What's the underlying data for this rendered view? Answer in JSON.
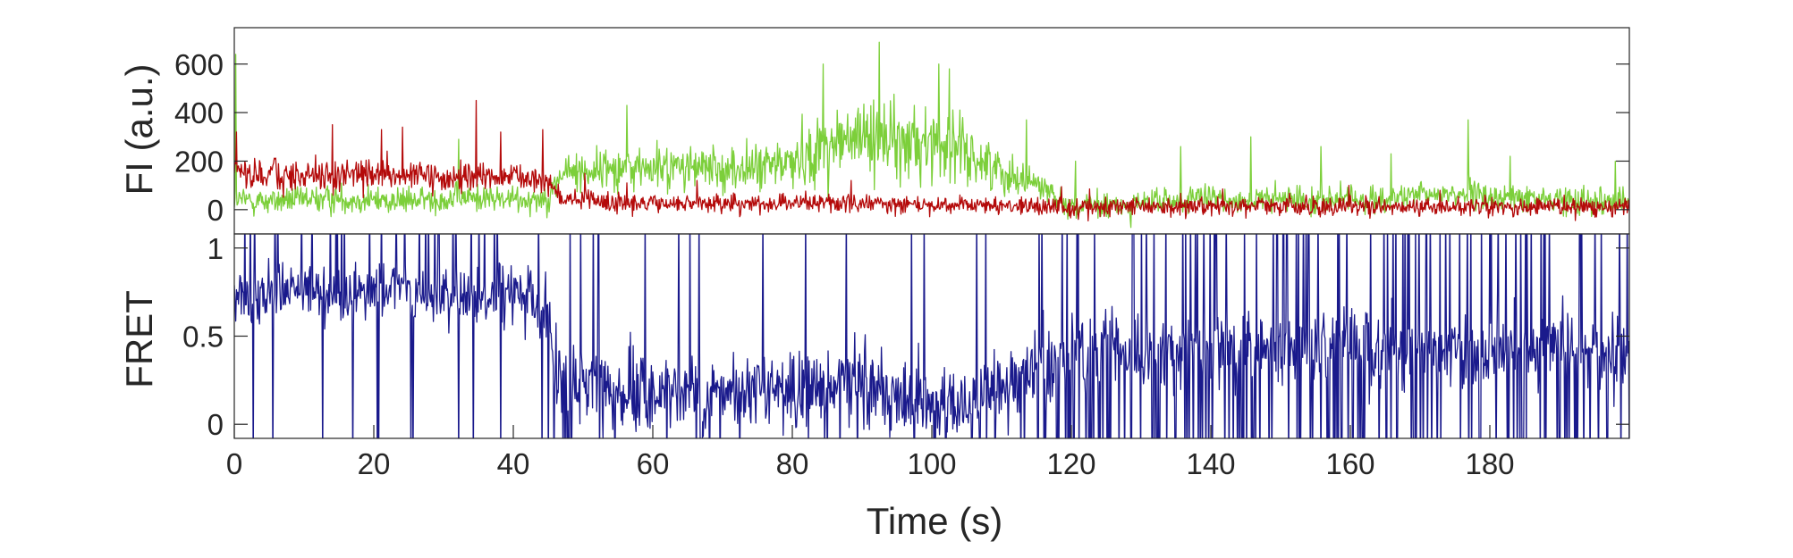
{
  "chart_data": [
    {
      "panel": "top",
      "type": "line",
      "ylabel": "FI (a.u.)",
      "xlim": [
        0,
        200
      ],
      "ylim": [
        -100,
        750
      ],
      "yticks": [
        0,
        200,
        400,
        600
      ],
      "ytick_labels": [
        "0",
        "200",
        "400",
        "600"
      ],
      "series": [
        {
          "color": "#7ccf3a",
          "x": [
            0,
            5,
            10,
            15,
            20,
            25,
            30,
            35,
            40,
            45,
            47,
            50,
            55,
            60,
            65,
            70,
            75,
            80,
            85,
            90,
            92,
            95,
            100,
            102,
            105,
            110,
            115,
            120,
            125,
            130,
            135,
            140,
            145,
            150,
            155,
            160,
            165,
            170,
            175,
            180,
            185,
            190,
            195,
            200
          ],
          "values": [
            40,
            35,
            40,
            45,
            40,
            35,
            45,
            50,
            40,
            50,
            150,
            160,
            175,
            170,
            175,
            165,
            170,
            200,
            260,
            290,
            320,
            260,
            280,
            270,
            230,
            160,
            110,
            15,
            10,
            25,
            35,
            45,
            40,
            40,
            45,
            40,
            45,
            55,
            70,
            50,
            45,
            40,
            45,
            30
          ],
          "peaks_x": [
            0.2,
            32,
            56,
            84,
            86,
            92,
            97,
            100.5,
            102,
            113,
            120,
            135,
            145,
            155,
            165,
            176,
            182,
            197
          ],
          "peaks_y": [
            640,
            290,
            430,
            600,
            410,
            690,
            430,
            600,
            580,
            370,
            200,
            260,
            300,
            260,
            230,
            370,
            220,
            200
          ]
        },
        {
          "color": "#b40a0a",
          "x": [
            0,
            5,
            10,
            15,
            20,
            25,
            30,
            35,
            40,
            45,
            47,
            50,
            55,
            60,
            65,
            70,
            75,
            80,
            85,
            90,
            95,
            100,
            105,
            110,
            115,
            120,
            125,
            130,
            135,
            140,
            145,
            150,
            155,
            160,
            165,
            170,
            175,
            180,
            185,
            190,
            195,
            200
          ],
          "values": [
            150,
            145,
            140,
            135,
            140,
            140,
            130,
            135,
            130,
            120,
            40,
            35,
            30,
            25,
            25,
            25,
            25,
            25,
            30,
            25,
            25,
            20,
            15,
            15,
            15,
            5,
            10,
            15,
            10,
            15,
            15,
            15,
            10,
            15,
            10,
            10,
            20,
            15,
            10,
            10,
            10,
            10
          ],
          "peaks_x": [
            0.3,
            14,
            21,
            24,
            34.5,
            38,
            44,
            50,
            56,
            66,
            88,
            118,
            122,
            141,
            159,
            172,
            199.5
          ],
          "peaks_y": [
            320,
            350,
            330,
            340,
            450,
            320,
            330,
            150,
            110,
            120,
            120,
            95,
            85,
            85,
            100,
            80,
            150
          ]
        }
      ]
    },
    {
      "panel": "bottom",
      "type": "line",
      "xlabel": "Time (s)",
      "ylabel": "FRET",
      "xlim": [
        0,
        200
      ],
      "ylim": [
        -0.08,
        1.08
      ],
      "xticks": [
        0,
        20,
        40,
        60,
        80,
        100,
        120,
        140,
        160,
        180
      ],
      "xtick_labels": [
        "0",
        "20",
        "40",
        "60",
        "80",
        "100",
        "120",
        "140",
        "160",
        "180"
      ],
      "yticks": [
        0,
        0.5,
        1
      ],
      "ytick_labels": [
        "0",
        "0.5",
        "1"
      ],
      "series": [
        {
          "color": "#1a1a8c",
          "x": [
            0,
            5,
            10,
            15,
            20,
            25,
            30,
            35,
            40,
            45,
            47,
            50,
            55,
            60,
            65,
            70,
            75,
            80,
            85,
            90,
            95,
            100,
            105,
            110,
            115,
            120,
            125,
            130,
            135,
            140,
            145,
            150,
            155,
            160,
            165,
            170,
            175,
            180,
            185,
            190,
            195,
            200
          ],
          "values": [
            0.72,
            0.74,
            0.76,
            0.72,
            0.76,
            0.75,
            0.72,
            0.7,
            0.74,
            0.66,
            0.22,
            0.2,
            0.19,
            0.17,
            0.18,
            0.2,
            0.17,
            0.18,
            0.22,
            0.26,
            0.17,
            0.12,
            0.12,
            0.2,
            0.3,
            0.4,
            0.42,
            0.42,
            0.4,
            0.44,
            0.42,
            0.42,
            0.43,
            0.44,
            0.42,
            0.44,
            0.4,
            0.42,
            0.44,
            0.42,
            0.42,
            0.38
          ]
        }
      ]
    }
  ]
}
